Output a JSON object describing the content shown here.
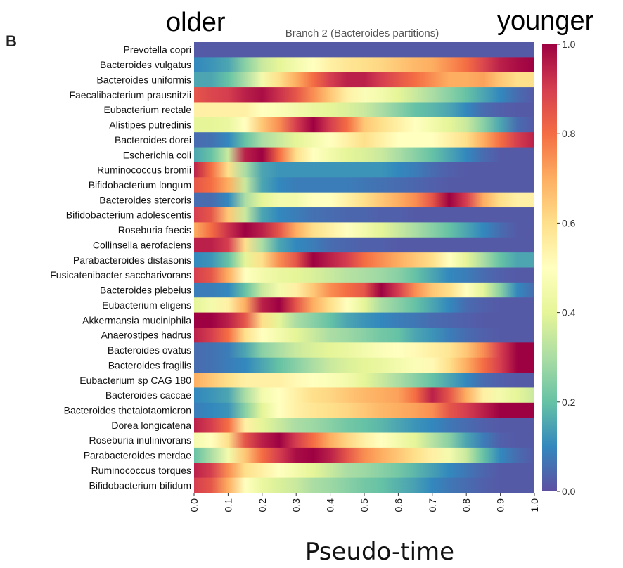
{
  "panel_letter": "B",
  "annotation_left": "older",
  "annotation_right": "younger",
  "chart_data": {
    "type": "heatmap",
    "title": "Branch 2 (Bacteroides partitions)",
    "xlabel": "Pseudo-time",
    "x_ticks": [
      "0.0",
      "0.1",
      "0.2",
      "0.3",
      "0.4",
      "0.5",
      "0.6",
      "0.7",
      "0.8",
      "0.9",
      "1.0"
    ],
    "x_range": [
      0,
      1
    ],
    "colorbar": {
      "ticks": [
        "0.0",
        "0.2",
        "0.4",
        "0.6",
        "0.8",
        "1.0"
      ],
      "range": [
        0,
        1
      ],
      "colormap": "Spectral_r",
      "colors": [
        "#5e4fa2",
        "#3288bd",
        "#66c2a5",
        "#abdda4",
        "#e6f598",
        "#ffffbf",
        "#fee08b",
        "#fdae61",
        "#f46d43",
        "#d53e4f",
        "#9e0142"
      ]
    },
    "grid": false,
    "columns_x": [
      0,
      0.05,
      0.1,
      0.15,
      0.2,
      0.25,
      0.3,
      0.35,
      0.4,
      0.45,
      0.5,
      0.55,
      0.6,
      0.65,
      0.7,
      0.75,
      0.8,
      0.85,
      0.9,
      0.95,
      1.0
    ],
    "rows": [
      {
        "name": "Prevotella copri",
        "values": [
          0.02,
          0.02,
          0.02,
          0.02,
          0.02,
          0.02,
          0.02,
          0.02,
          0.02,
          0.02,
          0.02,
          0.02,
          0.02,
          0.02,
          0.02,
          0.02,
          0.02,
          0.02,
          0.02,
          0.02,
          0.02
        ]
      },
      {
        "name": "Bacteroides vulgatus",
        "values": [
          0.1,
          0.12,
          0.15,
          0.25,
          0.35,
          0.4,
          0.45,
          0.5,
          0.55,
          0.58,
          0.6,
          0.62,
          0.65,
          0.68,
          0.7,
          0.75,
          0.8,
          0.88,
          0.95,
          0.98,
          1.0
        ]
      },
      {
        "name": "Bacteroides uniformis",
        "values": [
          0.15,
          0.15,
          0.2,
          0.3,
          0.45,
          0.6,
          0.7,
          0.8,
          0.9,
          0.95,
          0.95,
          0.9,
          0.85,
          0.8,
          0.75,
          0.7,
          0.7,
          0.72,
          0.65,
          0.6,
          0.6
        ]
      },
      {
        "name": "Faecalibacterium prausnitzii",
        "values": [
          0.85,
          0.88,
          0.9,
          0.95,
          0.98,
          0.92,
          0.85,
          0.75,
          0.65,
          0.55,
          0.48,
          0.45,
          0.4,
          0.35,
          0.3,
          0.25,
          0.2,
          0.15,
          0.1,
          0.05,
          0.02
        ]
      },
      {
        "name": "Eubacterium rectale",
        "values": [
          0.55,
          0.55,
          0.55,
          0.55,
          0.5,
          0.48,
          0.45,
          0.42,
          0.4,
          0.38,
          0.35,
          0.3,
          0.25,
          0.2,
          0.18,
          0.15,
          0.1,
          0.05,
          0.03,
          0.02,
          0.02
        ]
      },
      {
        "name": "Alistipes putredinis",
        "values": [
          0.4,
          0.4,
          0.42,
          0.5,
          0.65,
          0.75,
          0.9,
          1.0,
          0.9,
          0.8,
          0.65,
          0.6,
          0.55,
          0.5,
          0.45,
          0.4,
          0.35,
          0.25,
          0.15,
          0.05,
          0.02
        ]
      },
      {
        "name": "Bacteroides dorei",
        "values": [
          0.05,
          0.06,
          0.1,
          0.2,
          0.3,
          0.35,
          0.4,
          0.45,
          0.5,
          0.55,
          0.6,
          0.55,
          0.5,
          0.5,
          0.5,
          0.55,
          0.6,
          0.7,
          0.8,
          0.9,
          0.95
        ]
      },
      {
        "name": "Escherichia coli",
        "values": [
          0.15,
          0.2,
          0.35,
          0.95,
          1.0,
          0.8,
          0.6,
          0.5,
          0.45,
          0.4,
          0.38,
          0.35,
          0.3,
          0.25,
          0.2,
          0.15,
          0.1,
          0.05,
          0.02,
          0.02,
          0.02
        ]
      },
      {
        "name": "Ruminococcus bromii",
        "values": [
          0.95,
          0.8,
          0.6,
          0.3,
          0.15,
          0.12,
          0.12,
          0.12,
          0.12,
          0.12,
          0.12,
          0.12,
          0.1,
          0.08,
          0.05,
          0.03,
          0.02,
          0.02,
          0.02,
          0.02,
          0.02
        ]
      },
      {
        "name": "Bifidobacterium longum",
        "values": [
          0.85,
          0.8,
          0.7,
          0.35,
          0.15,
          0.1,
          0.08,
          0.08,
          0.08,
          0.08,
          0.07,
          0.06,
          0.05,
          0.04,
          0.03,
          0.02,
          0.02,
          0.02,
          0.02,
          0.02,
          0.02
        ]
      },
      {
        "name": "Bacteroides stercoris",
        "values": [
          0.05,
          0.05,
          0.1,
          0.3,
          0.4,
          0.45,
          0.45,
          0.5,
          0.5,
          0.55,
          0.6,
          0.65,
          0.7,
          0.75,
          0.85,
          1.0,
          0.9,
          0.7,
          0.6,
          0.55,
          0.55
        ]
      },
      {
        "name": "Bifidobacterium adolescentis",
        "values": [
          0.9,
          0.85,
          0.65,
          0.35,
          0.15,
          0.1,
          0.08,
          0.06,
          0.05,
          0.04,
          0.04,
          0.03,
          0.03,
          0.02,
          0.02,
          0.02,
          0.02,
          0.02,
          0.02,
          0.02,
          0.02
        ]
      },
      {
        "name": "Roseburia faecis",
        "values": [
          0.7,
          0.8,
          0.92,
          1.0,
          0.95,
          0.85,
          0.7,
          0.6,
          0.55,
          0.5,
          0.45,
          0.4,
          0.35,
          0.3,
          0.25,
          0.2,
          0.15,
          0.1,
          0.05,
          0.02,
          0.02
        ]
      },
      {
        "name": "Collinsella aerofaciens",
        "values": [
          0.95,
          0.95,
          0.9,
          0.6,
          0.3,
          0.15,
          0.1,
          0.08,
          0.05,
          0.04,
          0.03,
          0.03,
          0.02,
          0.02,
          0.02,
          0.02,
          0.02,
          0.02,
          0.02,
          0.02,
          0.02
        ]
      },
      {
        "name": "Parabacteroides distasonis",
        "values": [
          0.1,
          0.12,
          0.2,
          0.4,
          0.6,
          0.75,
          0.85,
          1.0,
          0.95,
          0.9,
          0.8,
          0.75,
          0.7,
          0.65,
          0.6,
          0.5,
          0.4,
          0.3,
          0.2,
          0.15,
          0.15
        ]
      },
      {
        "name": "Fusicatenibacter saccharivorans",
        "values": [
          0.9,
          0.85,
          0.7,
          0.5,
          0.45,
          0.42,
          0.4,
          0.38,
          0.35,
          0.32,
          0.3,
          0.28,
          0.25,
          0.2,
          0.15,
          0.1,
          0.08,
          0.05,
          0.03,
          0.02,
          0.02
        ]
      },
      {
        "name": "Bacteroides plebeius",
        "values": [
          0.08,
          0.08,
          0.1,
          0.2,
          0.35,
          0.45,
          0.55,
          0.65,
          0.75,
          0.8,
          0.85,
          1.0,
          0.9,
          0.75,
          0.65,
          0.6,
          0.5,
          0.4,
          0.25,
          0.1,
          0.05
        ]
      },
      {
        "name": "Eubacterium eligens",
        "values": [
          0.4,
          0.45,
          0.55,
          0.7,
          0.95,
          1.0,
          0.85,
          0.7,
          0.6,
          0.5,
          0.4,
          0.3,
          0.25,
          0.2,
          0.15,
          0.1,
          0.05,
          0.03,
          0.02,
          0.02,
          0.02
        ]
      },
      {
        "name": "Akkermansia muciniphila",
        "values": [
          1.0,
          1.0,
          0.95,
          0.85,
          0.6,
          0.4,
          0.3,
          0.25,
          0.2,
          0.15,
          0.12,
          0.1,
          0.08,
          0.07,
          0.05,
          0.04,
          0.03,
          0.02,
          0.02,
          0.02,
          0.02
        ]
      },
      {
        "name": "Anaerostipes hadrus",
        "values": [
          0.95,
          0.9,
          0.8,
          0.6,
          0.5,
          0.45,
          0.4,
          0.35,
          0.3,
          0.28,
          0.25,
          0.22,
          0.2,
          0.15,
          0.12,
          0.08,
          0.05,
          0.03,
          0.02,
          0.02,
          0.02
        ]
      },
      {
        "name": "Bacteroides ovatus",
        "values": [
          0.05,
          0.06,
          0.08,
          0.15,
          0.25,
          0.3,
          0.35,
          0.38,
          0.4,
          0.42,
          0.45,
          0.48,
          0.5,
          0.52,
          0.55,
          0.58,
          0.65,
          0.75,
          0.9,
          1.0,
          1.0
        ]
      },
      {
        "name": "Bacteroides fragilis",
        "values": [
          0.05,
          0.06,
          0.08,
          0.1,
          0.15,
          0.2,
          0.25,
          0.3,
          0.35,
          0.38,
          0.4,
          0.42,
          0.45,
          0.48,
          0.52,
          0.6,
          0.7,
          0.8,
          0.9,
          1.0,
          1.0
        ]
      },
      {
        "name": "Eubacterium sp CAG 180",
        "values": [
          0.7,
          0.65,
          0.6,
          0.55,
          0.55,
          0.55,
          0.52,
          0.5,
          0.48,
          0.45,
          0.4,
          0.35,
          0.3,
          0.25,
          0.2,
          0.15,
          0.1,
          0.05,
          0.03,
          0.02,
          0.02
        ]
      },
      {
        "name": "Bacteroides caccae",
        "values": [
          0.1,
          0.12,
          0.15,
          0.3,
          0.45,
          0.5,
          0.55,
          0.6,
          0.62,
          0.65,
          0.68,
          0.7,
          0.72,
          0.8,
          0.95,
          0.85,
          0.7,
          0.55,
          0.45,
          0.4,
          0.35
        ]
      },
      {
        "name": "Bacteroides thetaiotaomicron",
        "values": [
          0.08,
          0.1,
          0.12,
          0.25,
          0.4,
          0.5,
          0.55,
          0.58,
          0.6,
          0.62,
          0.65,
          0.68,
          0.7,
          0.72,
          0.75,
          0.85,
          0.9,
          0.95,
          1.0,
          1.0,
          1.0
        ]
      },
      {
        "name": "Dorea longicatena",
        "values": [
          0.95,
          0.9,
          0.8,
          0.55,
          0.4,
          0.35,
          0.3,
          0.28,
          0.25,
          0.22,
          0.2,
          0.18,
          0.15,
          0.12,
          0.1,
          0.07,
          0.05,
          0.03,
          0.02,
          0.02,
          0.02
        ]
      },
      {
        "name": "Roseburia inulinivorans",
        "values": [
          0.45,
          0.5,
          0.6,
          0.85,
          0.95,
          1.0,
          0.9,
          0.8,
          0.7,
          0.62,
          0.55,
          0.5,
          0.45,
          0.4,
          0.32,
          0.25,
          0.15,
          0.08,
          0.03,
          0.02,
          0.02
        ]
      },
      {
        "name": "Parabacteroides merdae",
        "values": [
          0.2,
          0.3,
          0.45,
          0.65,
          0.8,
          0.9,
          0.98,
          1.0,
          0.95,
          0.85,
          0.75,
          0.7,
          0.65,
          0.6,
          0.55,
          0.45,
          0.35,
          0.2,
          0.1,
          0.05,
          0.02
        ]
      },
      {
        "name": "Ruminococcus torques",
        "values": [
          0.95,
          0.9,
          0.75,
          0.6,
          0.55,
          0.5,
          0.45,
          0.4,
          0.35,
          0.3,
          0.28,
          0.25,
          0.22,
          0.18,
          0.14,
          0.1,
          0.07,
          0.04,
          0.02,
          0.02,
          0.02
        ]
      },
      {
        "name": "Bifidobacterium bifidum",
        "values": [
          0.9,
          0.85,
          0.7,
          0.5,
          0.42,
          0.38,
          0.35,
          0.3,
          0.28,
          0.25,
          0.22,
          0.2,
          0.17,
          0.14,
          0.1,
          0.07,
          0.05,
          0.03,
          0.02,
          0.02,
          0.02
        ]
      }
    ]
  }
}
